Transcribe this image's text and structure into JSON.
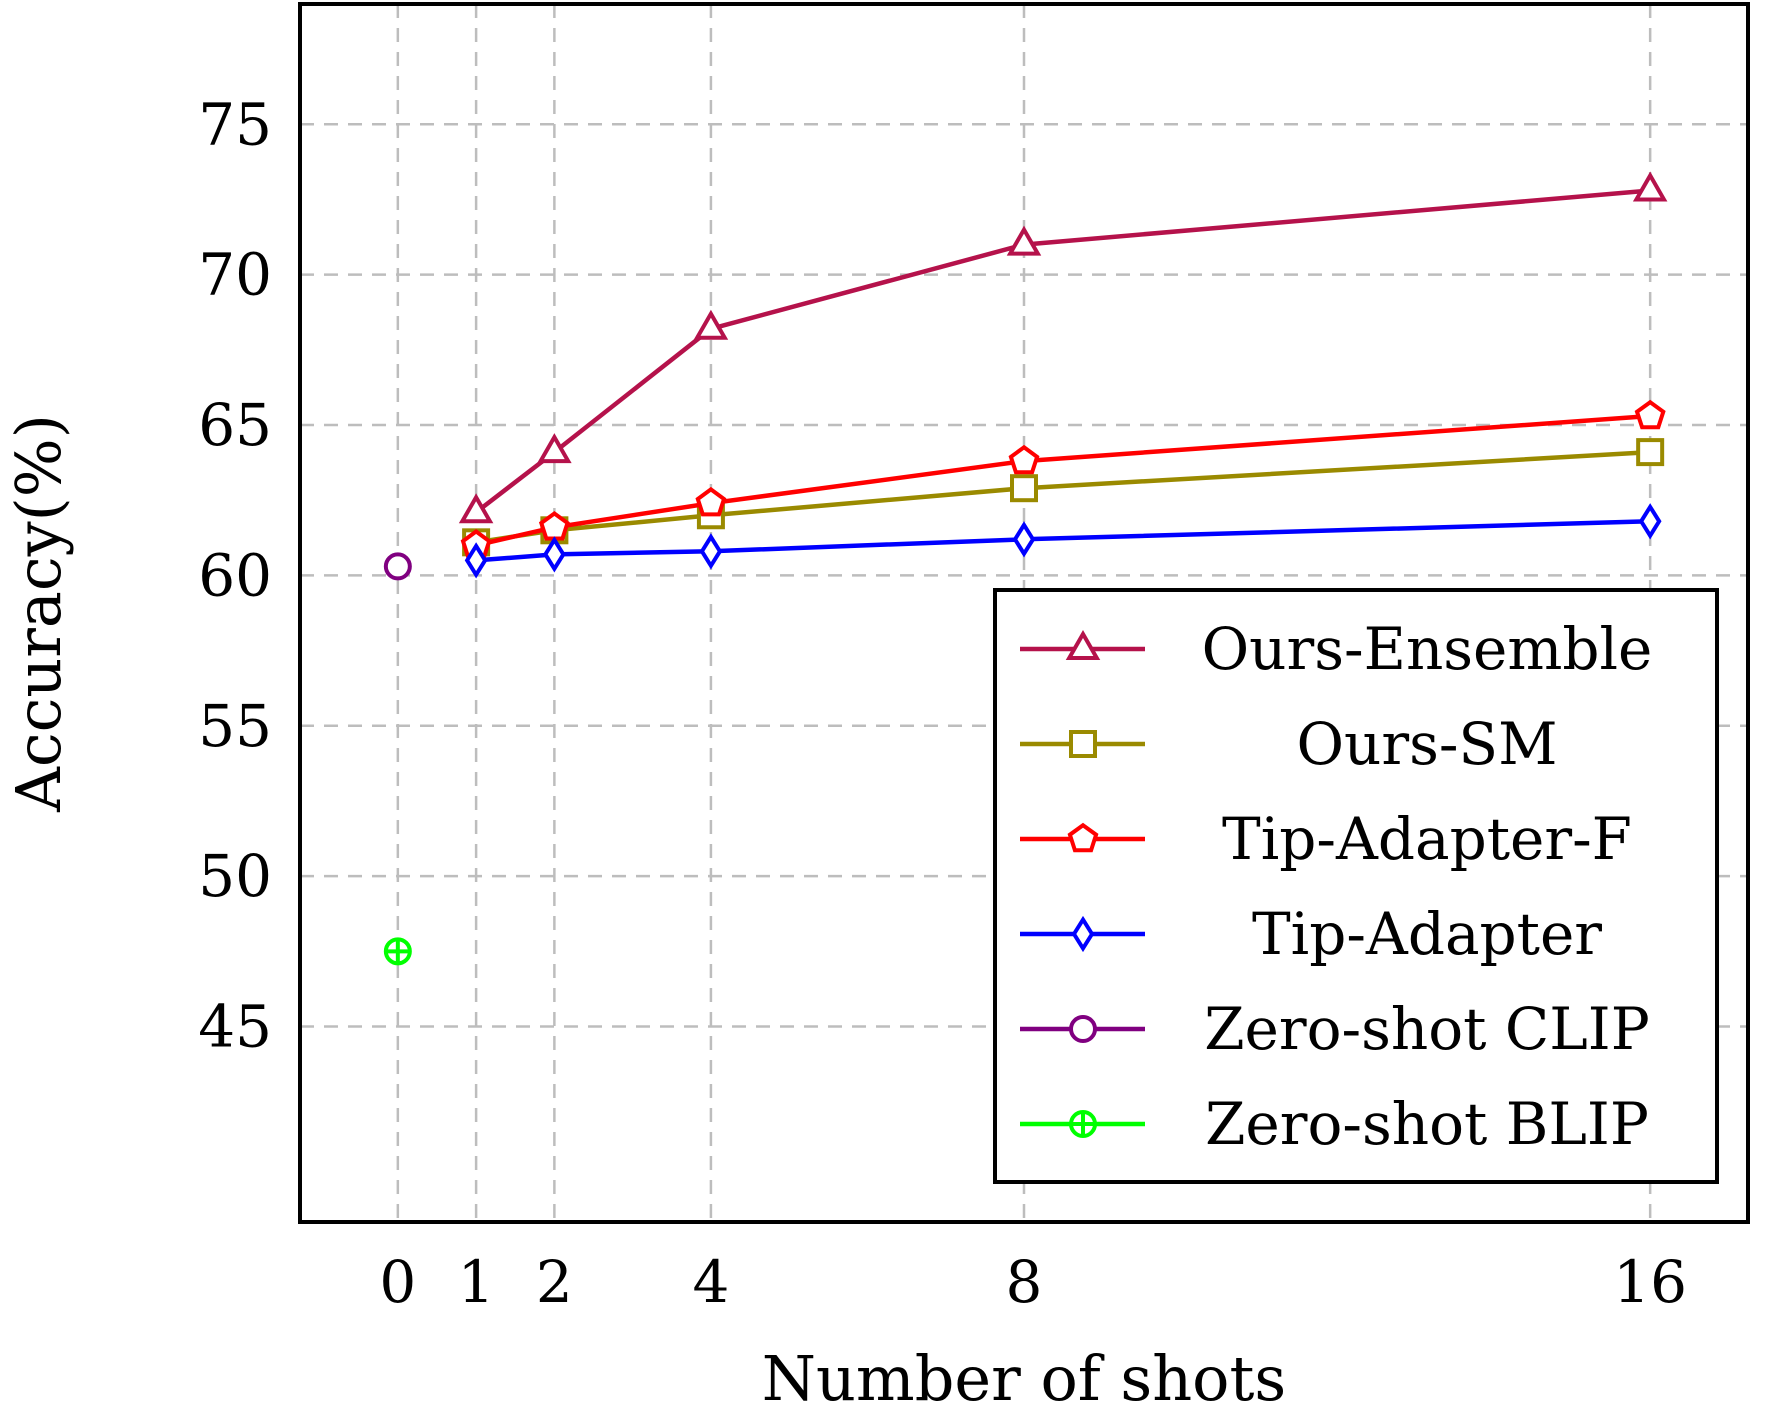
{
  "chart_data": {
    "type": "line",
    "xlabel": "Number of shots",
    "ylabel": "Accuracy(%)",
    "xlim": [
      -1.25,
      17.25
    ],
    "ylim": [
      38.5,
      79
    ],
    "xticks": [
      0,
      1,
      2,
      4,
      8,
      16
    ],
    "yticks": [
      45,
      50,
      55,
      60,
      65,
      70,
      75
    ],
    "grid": true,
    "grid_style": "dashed",
    "legend_position": "bottom-right",
    "series": [
      {
        "name": "Ours-Ensemble",
        "color": "#b5124b",
        "marker": "triangle",
        "x": [
          1,
          2,
          4,
          8,
          16
        ],
        "y": [
          62.1,
          64.1,
          68.2,
          71.0,
          72.8
        ]
      },
      {
        "name": "Ours-SM",
        "color": "#9a8a00",
        "marker": "square",
        "x": [
          1,
          2,
          4,
          8,
          16
        ],
        "y": [
          61.1,
          61.5,
          62.0,
          62.9,
          64.1
        ]
      },
      {
        "name": "Tip-Adapter-F",
        "color": "#ff0000",
        "marker": "pentagon",
        "x": [
          1,
          2,
          4,
          8,
          16
        ],
        "y": [
          61.0,
          61.6,
          62.4,
          63.8,
          65.3
        ]
      },
      {
        "name": "Tip-Adapter",
        "color": "#0000ff",
        "marker": "diamond",
        "x": [
          1,
          2,
          4,
          8,
          16
        ],
        "y": [
          60.5,
          60.7,
          60.8,
          61.2,
          61.8
        ]
      },
      {
        "name": "Zero-shot CLIP",
        "color": "#800080",
        "marker": "circle",
        "x": [
          0
        ],
        "y": [
          60.3
        ]
      },
      {
        "name": "Zero-shot BLIP",
        "color": "#00ff00",
        "marker": "oplus",
        "x": [
          0
        ],
        "y": [
          47.5
        ]
      }
    ]
  }
}
